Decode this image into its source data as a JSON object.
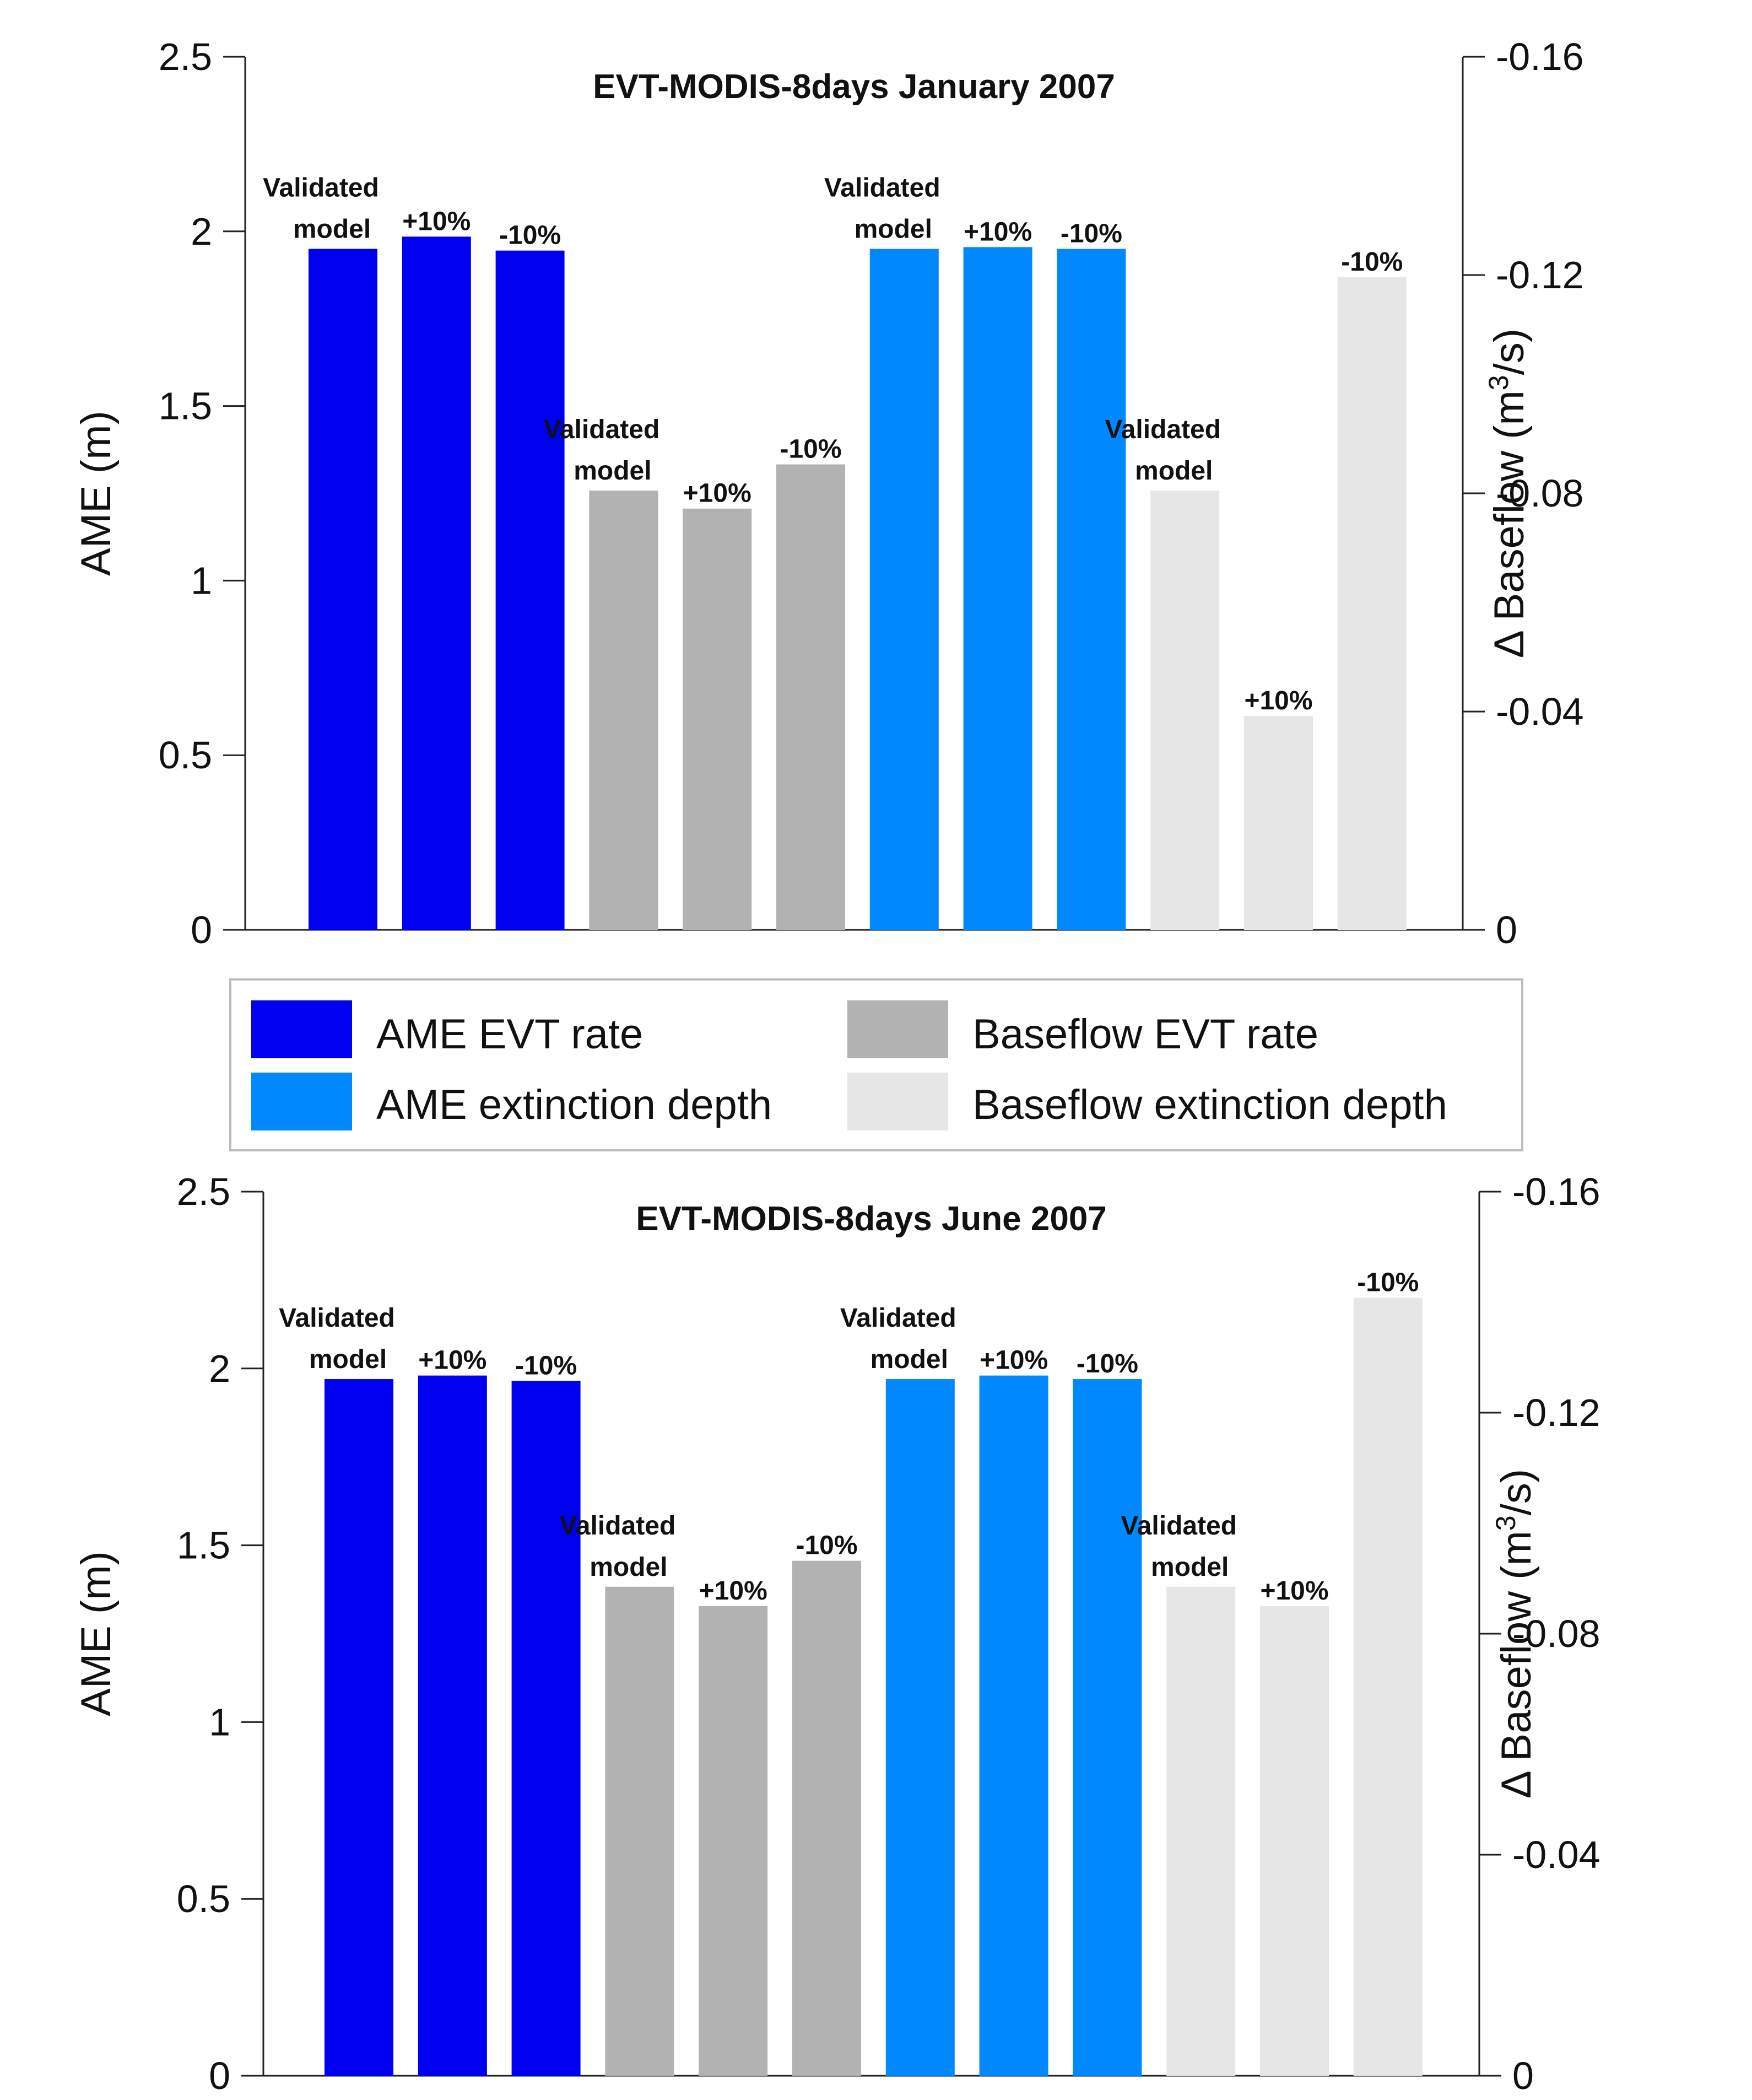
{
  "legend": {
    "items": [
      {
        "label": "AME EVT rate",
        "color": "#0000f0"
      },
      {
        "label": "Baseflow EVT rate",
        "color": "#b2b2b2"
      },
      {
        "label": "AME extinction depth",
        "color": "#0088ff"
      },
      {
        "label": "Baseflow extinction depth",
        "color": "#e6e6e6"
      }
    ]
  },
  "chart_data": [
    {
      "type": "bar",
      "title": "EVT-MODIS-8days January 2007",
      "ylabel": "AME (m)",
      "y2label": "Δ Baseflow (m³/s)",
      "ylabel2_parts": {
        "pre": "Δ Baseflow (m",
        "sup": "3",
        "post": "/s)"
      },
      "ylim": [
        0,
        2.5
      ],
      "y_ticks": [
        "0",
        "0.5",
        "1",
        "1.5",
        "2",
        "2.5"
      ],
      "y2lim": [
        0,
        -0.16
      ],
      "y2_ticks": [
        "0",
        "-0.04",
        "-0.08",
        "-0.12",
        "-0.16"
      ],
      "bars": [
        {
          "group": "AME EVT rate",
          "axis": "left",
          "value": 1.95,
          "label": [
            "Validated",
            "model"
          ],
          "color": "#0000f0"
        },
        {
          "group": "AME EVT rate",
          "axis": "left",
          "value": 1.985,
          "label": [
            "+10%"
          ],
          "color": "#0000f0"
        },
        {
          "group": "AME EVT rate",
          "axis": "left",
          "value": 1.945,
          "label": [
            "-10%"
          ],
          "color": "#0000f0"
        },
        {
          "group": "Baseflow EVT rate",
          "axis": "right",
          "value": -0.0805,
          "label": [
            "Validated",
            "model"
          ],
          "color": "#b2b2b2"
        },
        {
          "group": "Baseflow EVT rate",
          "axis": "right",
          "value": -0.0772,
          "label": [
            "+10%"
          ],
          "color": "#b2b2b2"
        },
        {
          "group": "Baseflow EVT rate",
          "axis": "right",
          "value": -0.0853,
          "label": [
            "-10%"
          ],
          "color": "#b2b2b2"
        },
        {
          "group": "AME extinction depth",
          "axis": "left",
          "value": 1.95,
          "label": [
            "Validated",
            "model"
          ],
          "color": "#0088ff"
        },
        {
          "group": "AME extinction depth",
          "axis": "left",
          "value": 1.955,
          "label": [
            "+10%"
          ],
          "color": "#0088ff"
        },
        {
          "group": "AME extinction depth",
          "axis": "left",
          "value": 1.95,
          "label": [
            "-10%"
          ],
          "color": "#0088ff"
        },
        {
          "group": "Baseflow extinction depth",
          "axis": "right",
          "value": -0.0805,
          "label": [
            "Validated",
            "model"
          ],
          "color": "#e6e6e6"
        },
        {
          "group": "Baseflow extinction depth",
          "axis": "right",
          "value": -0.0392,
          "label": [
            "+10%"
          ],
          "color": "#e6e6e6"
        },
        {
          "group": "Baseflow extinction depth",
          "axis": "right",
          "value": -0.1196,
          "label": [
            "-10%"
          ],
          "color": "#e6e6e6"
        }
      ]
    },
    {
      "type": "bar",
      "title": "EVT-MODIS-8days June 2007",
      "ylabel": "AME (m)",
      "y2label": "Δ Baseflow (m³/s)",
      "ylabel2_parts": {
        "pre": "Δ Baseflow (m",
        "sup": "3",
        "post": "/s)"
      },
      "ylim": [
        0,
        2.5
      ],
      "y_ticks": [
        "0",
        "0.5",
        "1",
        "1.5",
        "2",
        "2.5"
      ],
      "y2lim": [
        0,
        -0.16
      ],
      "y2_ticks": [
        "0",
        "-0.04",
        "-0.08",
        "-0.12",
        "-0.16"
      ],
      "bars": [
        {
          "group": "AME EVT rate",
          "axis": "left",
          "value": 1.97,
          "label": [
            "Validated",
            "model"
          ],
          "color": "#0000f0"
        },
        {
          "group": "AME EVT rate",
          "axis": "left",
          "value": 1.98,
          "label": [
            "+10%"
          ],
          "color": "#0000f0"
        },
        {
          "group": "AME EVT rate",
          "axis": "left",
          "value": 1.965,
          "label": [
            "-10%"
          ],
          "color": "#0000f0"
        },
        {
          "group": "Baseflow EVT rate",
          "axis": "right",
          "value": -0.0885,
          "label": [
            "Validated",
            "model"
          ],
          "color": "#b2b2b2"
        },
        {
          "group": "Baseflow EVT rate",
          "axis": "right",
          "value": -0.085,
          "label": [
            "+10%"
          ],
          "color": "#b2b2b2"
        },
        {
          "group": "Baseflow EVT rate",
          "axis": "right",
          "value": -0.0932,
          "label": [
            "-10%"
          ],
          "color": "#b2b2b2"
        },
        {
          "group": "AME extinction depth",
          "axis": "left",
          "value": 1.97,
          "label": [
            "Validated",
            "model"
          ],
          "color": "#0088ff"
        },
        {
          "group": "AME extinction depth",
          "axis": "left",
          "value": 1.98,
          "label": [
            "+10%"
          ],
          "color": "#0088ff"
        },
        {
          "group": "AME extinction depth",
          "axis": "left",
          "value": 1.97,
          "label": [
            "-10%"
          ],
          "color": "#0088ff"
        },
        {
          "group": "Baseflow extinction depth",
          "axis": "right",
          "value": -0.0885,
          "label": [
            "Validated",
            "model"
          ],
          "color": "#e6e6e6"
        },
        {
          "group": "Baseflow extinction depth",
          "axis": "right",
          "value": -0.085,
          "label": [
            "+10%"
          ],
          "color": "#e6e6e6"
        },
        {
          "group": "Baseflow extinction depth",
          "axis": "right",
          "value": -0.1408,
          "label": [
            "-10%"
          ],
          "color": "#e6e6e6"
        }
      ]
    }
  ]
}
